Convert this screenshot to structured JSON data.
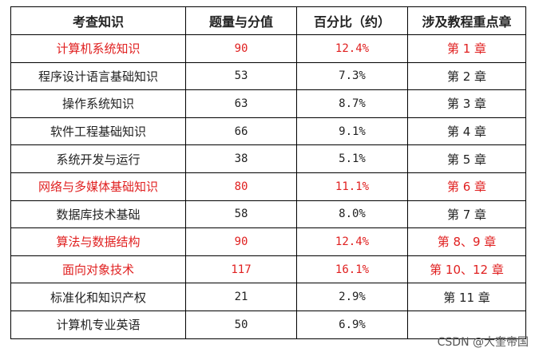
{
  "table": {
    "headers": [
      "考查知识",
      "题量与分值",
      "百分比（约）",
      "涉及教程重点章"
    ],
    "rows": [
      {
        "topic": "计算机系统知识",
        "score": "90",
        "percent": "12.4%",
        "chapter": "第 1 章",
        "highlight": true
      },
      {
        "topic": "程序设计语言基础知识",
        "score": "53",
        "percent": "7.3%",
        "chapter": "第 2 章",
        "highlight": false
      },
      {
        "topic": "操作系统知识",
        "score": "63",
        "percent": "8.7%",
        "chapter": "第 3 章",
        "highlight": false
      },
      {
        "topic": "软件工程基础知识",
        "score": "66",
        "percent": "9.1%",
        "chapter": "第 4 章",
        "highlight": false
      },
      {
        "topic": "系统开发与运行",
        "score": "38",
        "percent": "5.1%",
        "chapter": "第 5 章",
        "highlight": false
      },
      {
        "topic": "网络与多媒体基础知识",
        "score": "80",
        "percent": "11.1%",
        "chapter": "第 6 章",
        "highlight": true
      },
      {
        "topic": "数据库技术基础",
        "score": "58",
        "percent": "8.0%",
        "chapter": "第 7 章",
        "highlight": false
      },
      {
        "topic": "算法与数据结构",
        "score": "90",
        "percent": "12.4%",
        "chapter": "第 8、9 章",
        "highlight": true
      },
      {
        "topic": "面向对象技术",
        "score": "117",
        "percent": "16.1%",
        "chapter": "第 10、12 章",
        "highlight": true
      },
      {
        "topic": "标准化和知识产权",
        "score": "21",
        "percent": "2.9%",
        "chapter": "第 11 章",
        "highlight": false
      },
      {
        "topic": "计算机专业英语",
        "score": "50",
        "percent": "6.9%",
        "chapter": "",
        "highlight": false
      }
    ]
  },
  "watermark": "CSDN @大奎帝国",
  "colors": {
    "highlight": "#e02020",
    "text": "#222222",
    "border": "#000000"
  }
}
